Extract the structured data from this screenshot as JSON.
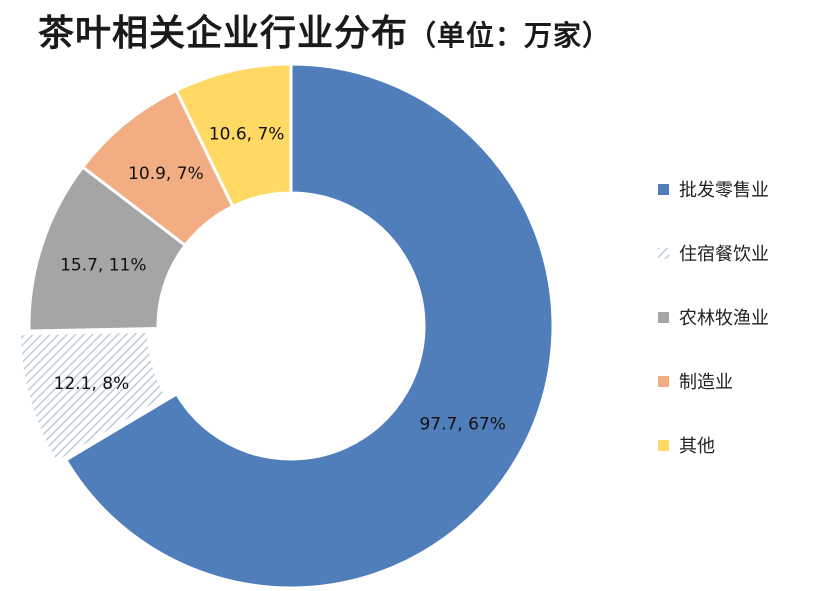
{
  "title": {
    "main": "茶叶相关企业行业分布",
    "unit": "（单位：万家）"
  },
  "chart_data": {
    "type": "pie",
    "variant": "donut",
    "title": "茶叶相关企业行业分布（单位：万家）",
    "legend_position": "right",
    "categories": [
      "批发零售业",
      "住宿餐饮业",
      "农林牧渔业",
      "制造业",
      "其他"
    ],
    "values": [
      97.7,
      12.1,
      15.7,
      10.9,
      10.6
    ],
    "percentages": [
      67,
      8,
      11,
      7,
      7
    ],
    "data_labels": [
      "97.7, 67%",
      "12.1, 8%",
      "15.7, 11%",
      "10.9, 7%",
      "10.6, 7%"
    ],
    "colors": [
      "#4f7ebb",
      "#c9d6df",
      "#a5a5a5",
      "#f2ae82",
      "#ffd964"
    ],
    "patterns": [
      "solid",
      "hatch",
      "solid",
      "solid",
      "solid"
    ],
    "exploded": [
      false,
      true,
      false,
      false,
      false
    ]
  }
}
